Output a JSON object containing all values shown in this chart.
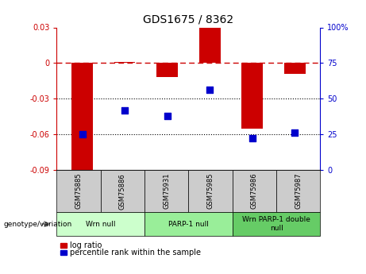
{
  "title": "GDS1675 / 8362",
  "samples": [
    "GSM75885",
    "GSM75886",
    "GSM75931",
    "GSM75985",
    "GSM75986",
    "GSM75987"
  ],
  "log_ratios": [
    -0.093,
    0.001,
    -0.012,
    0.03,
    -0.055,
    -0.009
  ],
  "percentile_ranks": [
    25,
    42,
    38,
    56,
    22,
    26
  ],
  "groups": [
    {
      "label": "Wrn null",
      "indices": [
        0,
        1
      ],
      "color": "#ccffcc"
    },
    {
      "label": "PARP-1 null",
      "indices": [
        2,
        3
      ],
      "color": "#99ee99"
    },
    {
      "label": "Wrn PARP-1 double\nnull",
      "indices": [
        4,
        5
      ],
      "color": "#66cc66"
    }
  ],
  "ylim_left": [
    -0.09,
    0.03
  ],
  "ylim_right": [
    0,
    100
  ],
  "yticks_left": [
    -0.09,
    -0.06,
    -0.03,
    0.0,
    0.03
  ],
  "ytick_labels_left": [
    "-0.09",
    "-0.06",
    "-0.03",
    "0",
    "0.03"
  ],
  "yticks_right": [
    0,
    25,
    50,
    75,
    100
  ],
  "ytick_labels_right": [
    "0",
    "25",
    "50",
    "75",
    "100%"
  ],
  "hlines_dotted": [
    -0.03,
    -0.06
  ],
  "hline_dashed": 0.0,
  "bar_color": "#cc0000",
  "dot_color": "#0000cc",
  "bar_width": 0.5,
  "dot_size": 40,
  "left_axis_color": "#cc0000",
  "right_axis_color": "#0000cc",
  "background_label": "#cccccc",
  "legend_red_label": "log ratio",
  "legend_blue_label": "percentile rank within the sample",
  "genotype_label": "genotype/variation"
}
